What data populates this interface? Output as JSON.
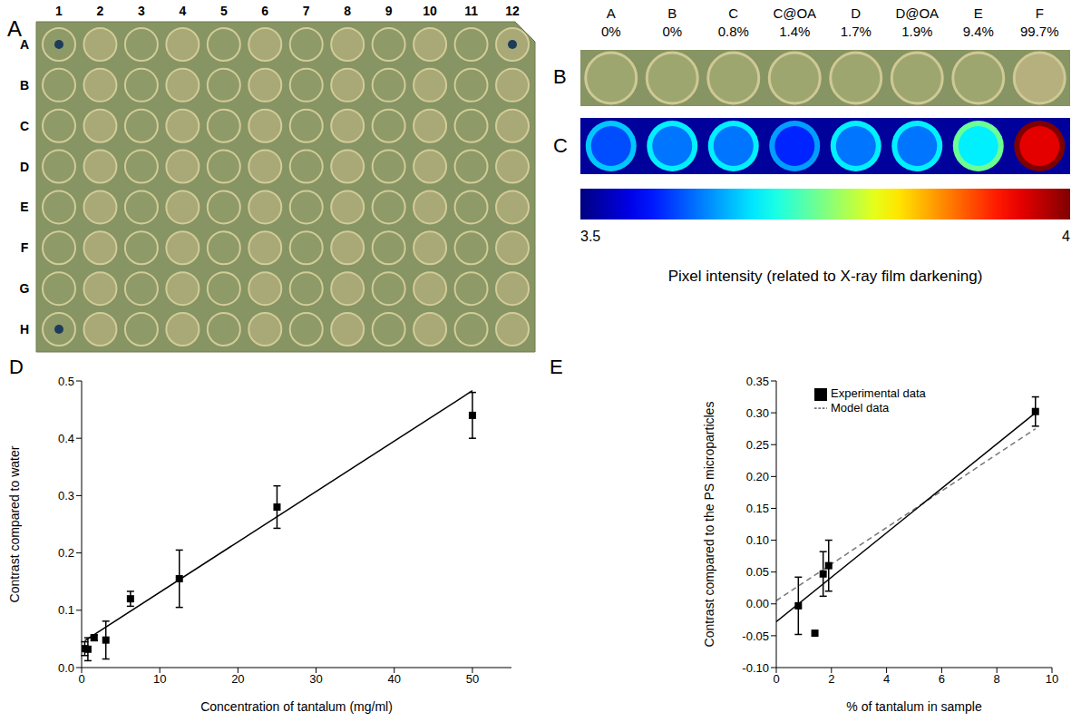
{
  "plate": {
    "panel": "A",
    "columns": [
      "1",
      "2",
      "3",
      "4",
      "5",
      "6",
      "7",
      "8",
      "9",
      "10",
      "11",
      "12"
    ],
    "rows": [
      "A",
      "B",
      "C",
      "D",
      "E",
      "F",
      "G",
      "H"
    ]
  },
  "wells": {
    "panels": [
      "B",
      "C"
    ],
    "names": [
      "A",
      "B",
      "C",
      "C@OA",
      "D",
      "D@OA",
      "E",
      "F"
    ],
    "labels": [
      "0%",
      "0%",
      "0.8%",
      "1.4%",
      "1.7%",
      "1.9%",
      "9.4%",
      "99.7%"
    ],
    "intensity": [
      3.6,
      3.62,
      3.62,
      3.58,
      3.62,
      3.62,
      3.68,
      3.95
    ]
  },
  "colorbar": {
    "range": [
      3.5,
      4
    ],
    "ticks": [
      3.5,
      4
    ],
    "label": "Pixel intensity (related to X-ray film darkening)"
  },
  "chart_data": [
    {
      "panel": "D",
      "type": "scatter",
      "x_label": "Concentration of tantalum (mg/ml)",
      "y_label": "Contrast compared to water",
      "xlim": [
        0,
        55
      ],
      "xticks": [
        0,
        10,
        20,
        30,
        40,
        50
      ],
      "ylim": [
        0,
        0.5
      ],
      "yticks": [
        {
          "value": 0,
          "label": "0.0"
        },
        0.1,
        0.2,
        0.3,
        0.4,
        0.5
      ],
      "grid": false,
      "series": [
        {
          "type": "scatter",
          "marker": "square",
          "color": "#000000",
          "x": [
            0.4,
            0.8,
            1.6,
            3.1,
            6.25,
            12.5,
            25,
            50
          ],
          "values": [
            0.033,
            0.032,
            0.052,
            0.048,
            0.12,
            0.155,
            0.28,
            0.44
          ],
          "errors": [
            0.012,
            0.02,
            0.005,
            0.033,
            0.013,
            0.05,
            0.037,
            0.04
          ]
        },
        {
          "type": "line",
          "line_style": "solid",
          "color": "#000000",
          "x": [
            0.4,
            50
          ],
          "values": [
            0.047,
            0.483
          ]
        }
      ]
    },
    {
      "panel": "E",
      "type": "scatter",
      "x_label": "% of tantalum in sample",
      "y_label": "Contrast compared to the PS microparticles",
      "xlim": [
        0,
        10
      ],
      "xticks": [
        0,
        2,
        4,
        6,
        8,
        10
      ],
      "ylim": [
        -0.1,
        0.35
      ],
      "yticks": [
        {
          "value": -0.1,
          "label": "-0.10"
        },
        -0.05,
        {
          "value": 0,
          "label": "0.00"
        },
        0.05,
        {
          "value": 0.1,
          "label": "0.10"
        },
        0.15,
        {
          "value": 0.2,
          "label": "0.20"
        },
        0.25,
        {
          "value": 0.3,
          "label": "0.30"
        },
        0.35
      ],
      "grid": false,
      "legend": "top",
      "series": [
        {
          "name": "Experimental data",
          "type": "scatter",
          "marker": "square",
          "color": "#000000",
          "x": [
            0.8,
            1.4,
            1.7,
            1.9,
            9.4
          ],
          "values": [
            -0.003,
            -0.046,
            0.047,
            0.06,
            0.302
          ],
          "errors": [
            0.045,
            0,
            0.035,
            0.04,
            0.023
          ]
        },
        {
          "name": "Model data",
          "type": "line",
          "line_style": "dashed",
          "color": "#777777",
          "x": [
            0,
            9.4
          ],
          "values": [
            0.005,
            0.275
          ]
        },
        {
          "type": "line",
          "line_style": "solid",
          "color": "#000000",
          "x": [
            0,
            9.4
          ],
          "values": [
            -0.028,
            0.3
          ]
        }
      ]
    }
  ]
}
